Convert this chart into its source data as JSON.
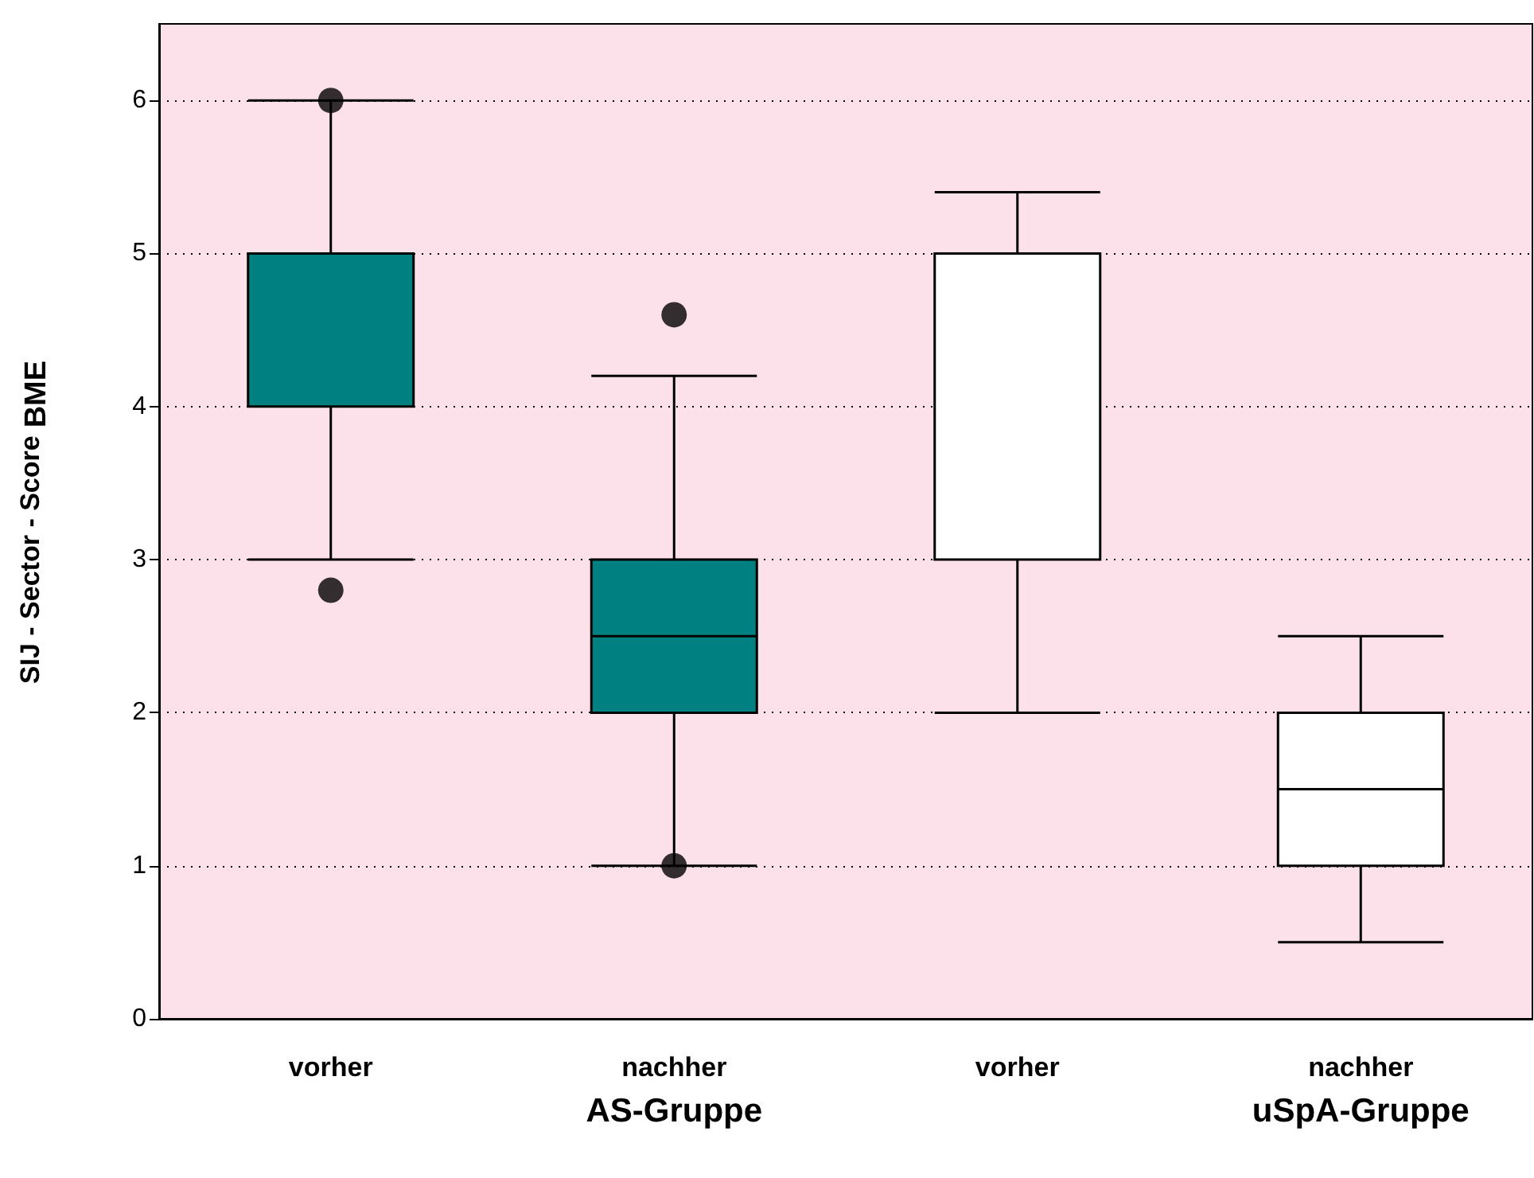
{
  "chart_data": {
    "type": "box",
    "ylabel": "SIJ - Sector - Score$_{BME}$",
    "categories": [
      "vorher",
      "nachher",
      "vorher",
      "nachher"
    ],
    "series": [
      {
        "color": "#008080",
        "boxes": [
          {
            "low": 3,
            "q1": 4,
            "median": 4,
            "q3": 5,
            "high": 6,
            "outliers": [
              6,
              2.8
            ]
          },
          {
            "low": 1,
            "q1": 2,
            "median": 2.5,
            "q3": 3,
            "high": 4.2,
            "outliers": [
              4.6,
              1
            ]
          },
          null,
          null
        ]
      },
      {
        "color": "#ffffff",
        "boxes": [
          null,
          null,
          {
            "low": 2,
            "q1": 3,
            "median": 3,
            "q3": 5,
            "high": 5.4
          },
          {
            "low": 0.5,
            "q1": 1,
            "median": 1.5,
            "q3": 2,
            "high": 2.5
          }
        ]
      }
    ],
    "ylim": [
      0,
      6.5
    ],
    "yticks": [
      0,
      1,
      2,
      3,
      4,
      5,
      6
    ],
    "grid": "y",
    "annotations": [
      "AS-Gruppe",
      "uSpA-Gruppe"
    ]
  }
}
